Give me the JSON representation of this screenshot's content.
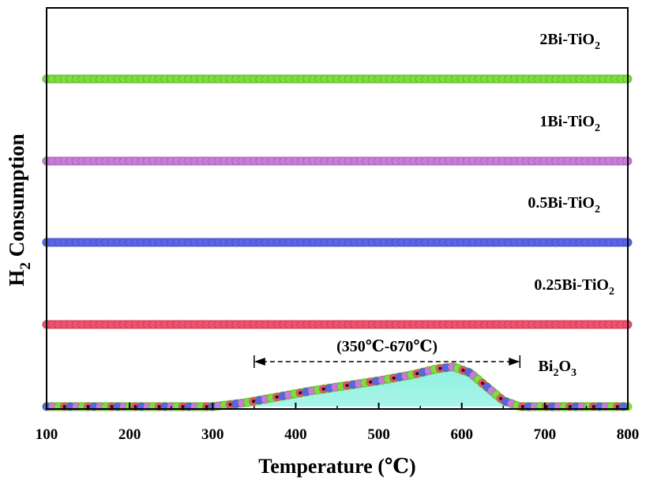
{
  "chart_data": {
    "type": "line",
    "title": "",
    "xlabel": "Temperature (℃)",
    "ylabel_main": "H",
    "ylabel_sub": "2",
    "ylabel_rest": " Consumption",
    "xlim": [
      100,
      800
    ],
    "xticks": [
      100,
      200,
      300,
      400,
      500,
      600,
      700,
      800
    ],
    "grid": false,
    "series": [
      {
        "name_main": "2Bi-TiO",
        "name_sub": "2",
        "color": "#7ddc3e",
        "baseline": 0,
        "x": [
          100,
          800
        ],
        "y": [
          0,
          0
        ]
      },
      {
        "name_main": "1Bi-TiO",
        "name_sub": "2",
        "color": "#c77dd8",
        "baseline": 0,
        "x": [
          100,
          800
        ],
        "y": [
          0,
          0
        ]
      },
      {
        "name_main": "0.5Bi-TiO",
        "name_sub": "2",
        "color": "#5a64e6",
        "baseline": 0,
        "x": [
          100,
          800
        ],
        "y": [
          0,
          0
        ]
      },
      {
        "name_main": "0.25Bi-TiO",
        "name_sub": "2",
        "color": "#f0506e",
        "baseline": 0,
        "x": [
          100,
          800
        ],
        "y": [
          0,
          0
        ]
      },
      {
        "name_pre": "Bi",
        "name_sub1": "2",
        "name_mid": "O",
        "name_sub2": "3",
        "color": "#7ddc3e",
        "x": [
          100,
          300,
          340,
          380,
          420,
          460,
          500,
          540,
          570,
          590,
          610,
          630,
          650,
          670,
          700,
          800
        ],
        "y": [
          0,
          0,
          4,
          10,
          16,
          21,
          26,
          32,
          38,
          40,
          34,
          20,
          6,
          0,
          0,
          0
        ]
      }
    ],
    "annotation": {
      "text": "(350℃-670℃)",
      "x_start": 350,
      "x_end": 670
    }
  }
}
